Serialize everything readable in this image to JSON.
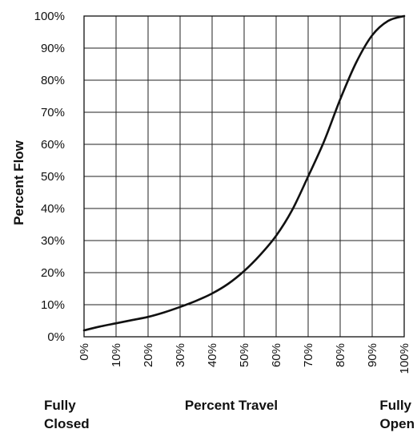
{
  "chart_data": {
    "type": "line",
    "xlabel": "Percent Travel",
    "ylabel": "Percent Flow",
    "xlim": [
      0,
      100
    ],
    "ylim": [
      0,
      100
    ],
    "grid": true,
    "x_ticks": [
      0,
      10,
      20,
      30,
      40,
      50,
      60,
      70,
      80,
      90,
      100
    ],
    "y_ticks": [
      0,
      10,
      20,
      30,
      40,
      50,
      60,
      70,
      80,
      90,
      100
    ],
    "x_tick_labels": [
      "0%",
      "10%",
      "20%",
      "30%",
      "40%",
      "50%",
      "60%",
      "70%",
      "80%",
      "90%",
      "100%"
    ],
    "y_tick_labels": [
      "0%",
      "10%",
      "20%",
      "30%",
      "40%",
      "50%",
      "60%",
      "70%",
      "80%",
      "90%",
      "100%"
    ],
    "endpoint_labels": {
      "left": [
        "Fully",
        "Closed"
      ],
      "right": [
        "Fully",
        "Open"
      ]
    },
    "series": [
      {
        "x": [
          0,
          5,
          10,
          15,
          20,
          25,
          30,
          35,
          40,
          45,
          50,
          55,
          60,
          65,
          70,
          75,
          80,
          85,
          90,
          95,
          100
        ],
        "y": [
          2,
          3.2,
          4.2,
          5.2,
          6.2,
          7.6,
          9.3,
          11.2,
          13.5,
          16.5,
          20.5,
          25.5,
          31.5,
          39.5,
          50,
          61,
          74,
          85.5,
          94,
          98.5,
          100
        ]
      }
    ]
  }
}
